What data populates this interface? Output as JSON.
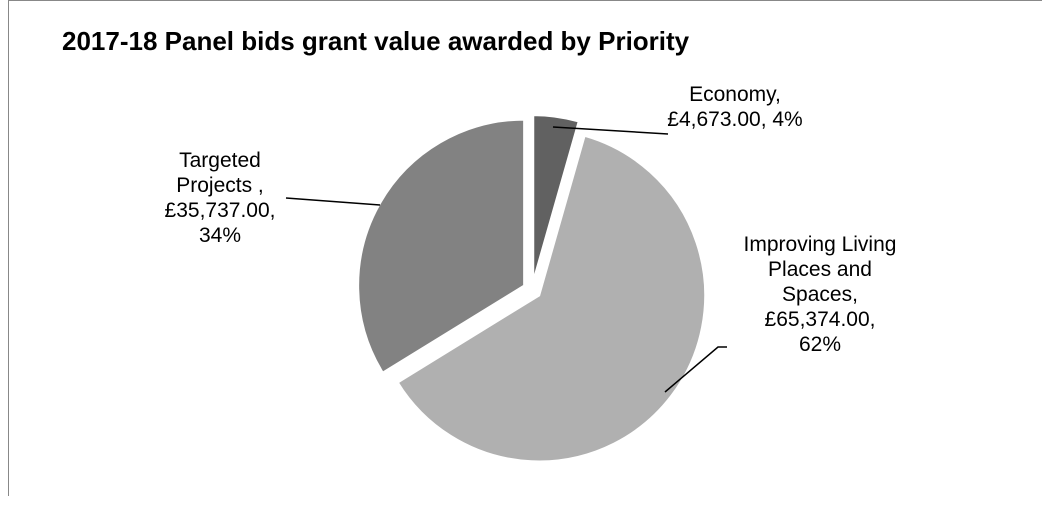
{
  "chart_data": {
    "type": "pie",
    "title": "2017-18 Panel bids grant value awarded by Priority",
    "categories": [
      "Economy,",
      "Improving Living Places and Spaces,",
      "Targeted Projects ,"
    ],
    "values": [
      4673,
      65374,
      35737
    ],
    "value_labels": [
      "£4,673.00,",
      "£65,374.00,",
      "£35,737.00,"
    ],
    "percents": [
      4,
      62,
      34
    ],
    "percent_labels": [
      "4%",
      "62%",
      "34%"
    ],
    "colors": [
      "#616161",
      "#b0b0b0",
      "#828282"
    ]
  }
}
